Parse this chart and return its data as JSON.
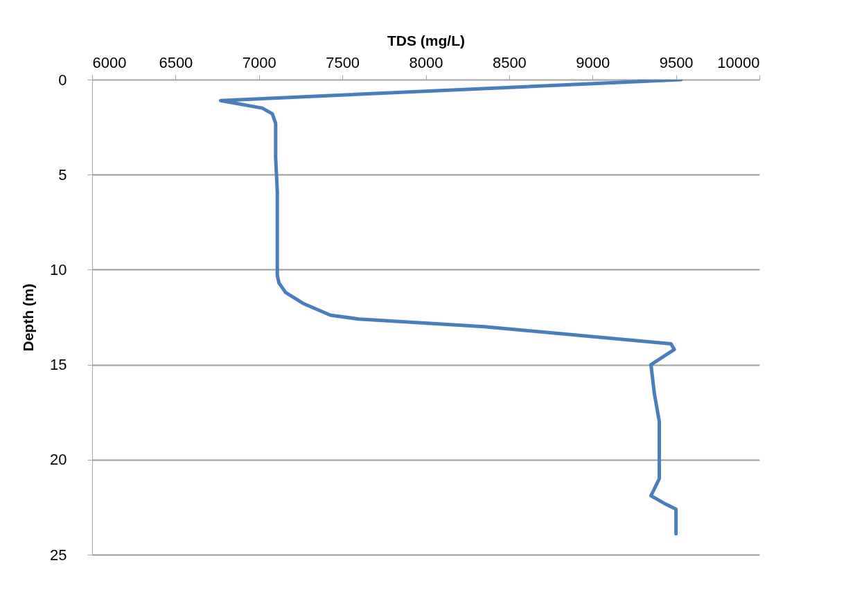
{
  "chart_data": {
    "type": "line",
    "xlabel": "TDS (mg/L)",
    "ylabel": "Depth (m)",
    "series": [
      {
        "color": "#4a7ebb",
        "x": [
          9530,
          6770,
          7020,
          7080,
          7100,
          7100,
          7110,
          7110,
          7110,
          7120,
          7160,
          7270,
          7430,
          7600,
          8350,
          9470,
          9490,
          9350,
          9370,
          9400,
          9400,
          9400,
          9350,
          9430,
          9500,
          9500
        ],
        "values": [
          0,
          1.1,
          1.5,
          1.8,
          2.3,
          4.1,
          5.9,
          8.9,
          10.3,
          10.7,
          11.2,
          11.8,
          12.4,
          12.6,
          13.0,
          13.9,
          14.2,
          15.0,
          16.5,
          18.0,
          20.5,
          21.0,
          21.9,
          22.3,
          22.6,
          23.9
        ]
      }
    ],
    "xlim": [
      6000,
      10000
    ],
    "xticks": [
      6000,
      6500,
      7000,
      7500,
      8000,
      8500,
      9000,
      9500,
      10000
    ],
    "ylim": [
      25,
      0
    ],
    "yticks": [
      0,
      5,
      10,
      15,
      20,
      25
    ],
    "grid": "y",
    "marker": "none",
    "line_style": "solid"
  }
}
